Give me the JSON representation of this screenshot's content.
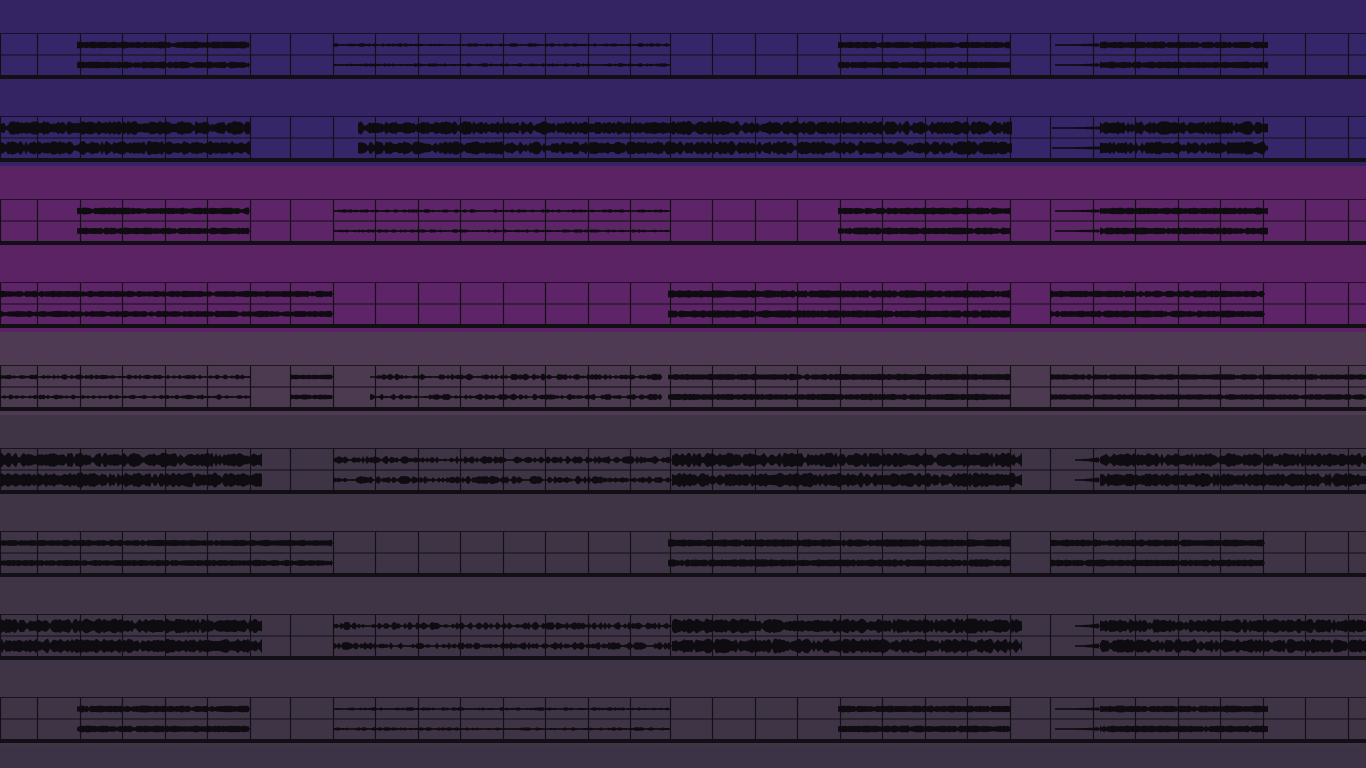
{
  "app": {
    "view": "arrangement"
  },
  "colors": {
    "ink": "#0e0c10",
    "grid": "#121015",
    "separator": "#121015"
  },
  "grid": {
    "marks": [
      0,
      37,
      80,
      122,
      165,
      207,
      250,
      290,
      333,
      375,
      418,
      460,
      503,
      545,
      588,
      630,
      670,
      712,
      755,
      797,
      840,
      882,
      925,
      967,
      1010,
      1050,
      1093,
      1135,
      1178,
      1220,
      1263,
      1305,
      1348
    ]
  },
  "tracks": [
    {
      "id": "track-1",
      "header_color": "#342463",
      "lane_color": "#35266a",
      "regions": [
        {
          "x1": 77,
          "x2": 250,
          "amp": 0.55,
          "style": "dense"
        },
        {
          "x1": 333,
          "x2": 670,
          "amp": 0.25,
          "style": "sparse"
        },
        {
          "x1": 838,
          "x2": 1010,
          "amp": 0.55,
          "style": "dense"
        },
        {
          "x1": 1055,
          "x2": 1100,
          "amp": 0.25,
          "style": "fade"
        },
        {
          "x1": 1100,
          "x2": 1268,
          "amp": 0.55,
          "style": "dense"
        }
      ]
    },
    {
      "id": "track-2",
      "header_color": "#342463",
      "lane_color": "#35266a",
      "regions": [
        {
          "x1": 0,
          "x2": 250,
          "amp": 0.95,
          "style": "busy"
        },
        {
          "x1": 358,
          "x2": 662,
          "amp": 0.9,
          "style": "busy"
        },
        {
          "x1": 662,
          "x2": 1012,
          "amp": 0.95,
          "style": "busy"
        },
        {
          "x1": 1052,
          "x2": 1100,
          "amp": 0.25,
          "style": "fade"
        },
        {
          "x1": 1100,
          "x2": 1268,
          "amp": 0.9,
          "style": "busy"
        }
      ]
    },
    {
      "id": "track-3",
      "header_color": "#5b2264",
      "lane_color": "#5d2467",
      "regions": [
        {
          "x1": 77,
          "x2": 250,
          "amp": 0.55,
          "style": "dense"
        },
        {
          "x1": 333,
          "x2": 670,
          "amp": 0.25,
          "style": "sparse"
        },
        {
          "x1": 838,
          "x2": 1010,
          "amp": 0.55,
          "style": "dense"
        },
        {
          "x1": 1055,
          "x2": 1100,
          "amp": 0.25,
          "style": "fade"
        },
        {
          "x1": 1100,
          "x2": 1268,
          "amp": 0.55,
          "style": "dense"
        }
      ]
    },
    {
      "id": "track-4",
      "header_color": "#5b2264",
      "lane_color": "#5d2467",
      "regions": [
        {
          "x1": 0,
          "x2": 333,
          "amp": 0.5,
          "style": "dense"
        },
        {
          "x1": 668,
          "x2": 1010,
          "amp": 0.6,
          "style": "dense"
        },
        {
          "x1": 1050,
          "x2": 1265,
          "amp": 0.55,
          "style": "dense"
        }
      ]
    },
    {
      "id": "track-5",
      "header_color": "#4e3a52",
      "lane_color": "#4c3a50",
      "regions": [
        {
          "x1": 0,
          "x2": 250,
          "amp": 0.35,
          "style": "sparse"
        },
        {
          "x1": 290,
          "x2": 333,
          "amp": 0.4,
          "style": "dense"
        },
        {
          "x1": 370,
          "x2": 662,
          "amp": 0.45,
          "style": "sparse"
        },
        {
          "x1": 668,
          "x2": 1010,
          "amp": 0.5,
          "style": "dense"
        },
        {
          "x1": 1050,
          "x2": 1366,
          "amp": 0.45,
          "style": "dense"
        }
      ]
    },
    {
      "id": "track-6",
      "header_color": "#3e3446",
      "lane_color": "#3e3446",
      "regions": [
        {
          "x1": 0,
          "x2": 262,
          "amp": 1.0,
          "style": "busy"
        },
        {
          "x1": 333,
          "x2": 672,
          "amp": 0.55,
          "style": "sparse"
        },
        {
          "x1": 672,
          "x2": 1022,
          "amp": 1.0,
          "style": "busy"
        },
        {
          "x1": 1075,
          "x2": 1100,
          "amp": 0.4,
          "style": "fade"
        },
        {
          "x1": 1100,
          "x2": 1366,
          "amp": 0.95,
          "style": "busy"
        }
      ]
    },
    {
      "id": "track-7",
      "header_color": "#3e3446",
      "lane_color": "#3e3446",
      "regions": [
        {
          "x1": 0,
          "x2": 333,
          "amp": 0.5,
          "style": "dense"
        },
        {
          "x1": 668,
          "x2": 1010,
          "amp": 0.6,
          "style": "dense"
        },
        {
          "x1": 1050,
          "x2": 1265,
          "amp": 0.55,
          "style": "dense"
        }
      ]
    },
    {
      "id": "track-8",
      "header_color": "#3e3446",
      "lane_color": "#3e3446",
      "regions": [
        {
          "x1": 0,
          "x2": 262,
          "amp": 1.0,
          "style": "busy"
        },
        {
          "x1": 333,
          "x2": 672,
          "amp": 0.55,
          "style": "sparse"
        },
        {
          "x1": 672,
          "x2": 1022,
          "amp": 1.0,
          "style": "busy"
        },
        {
          "x1": 1075,
          "x2": 1100,
          "amp": 0.4,
          "style": "fade"
        },
        {
          "x1": 1100,
          "x2": 1366,
          "amp": 0.95,
          "style": "busy"
        }
      ]
    },
    {
      "id": "track-9",
      "header_color": "#3e3446",
      "lane_color": "#3e3446",
      "regions": [
        {
          "x1": 77,
          "x2": 250,
          "amp": 0.55,
          "style": "dense"
        },
        {
          "x1": 333,
          "x2": 670,
          "amp": 0.25,
          "style": "sparse"
        },
        {
          "x1": 838,
          "x2": 1010,
          "amp": 0.55,
          "style": "dense"
        },
        {
          "x1": 1055,
          "x2": 1100,
          "amp": 0.25,
          "style": "fade"
        },
        {
          "x1": 1100,
          "x2": 1268,
          "amp": 0.55,
          "style": "dense"
        }
      ]
    }
  ]
}
